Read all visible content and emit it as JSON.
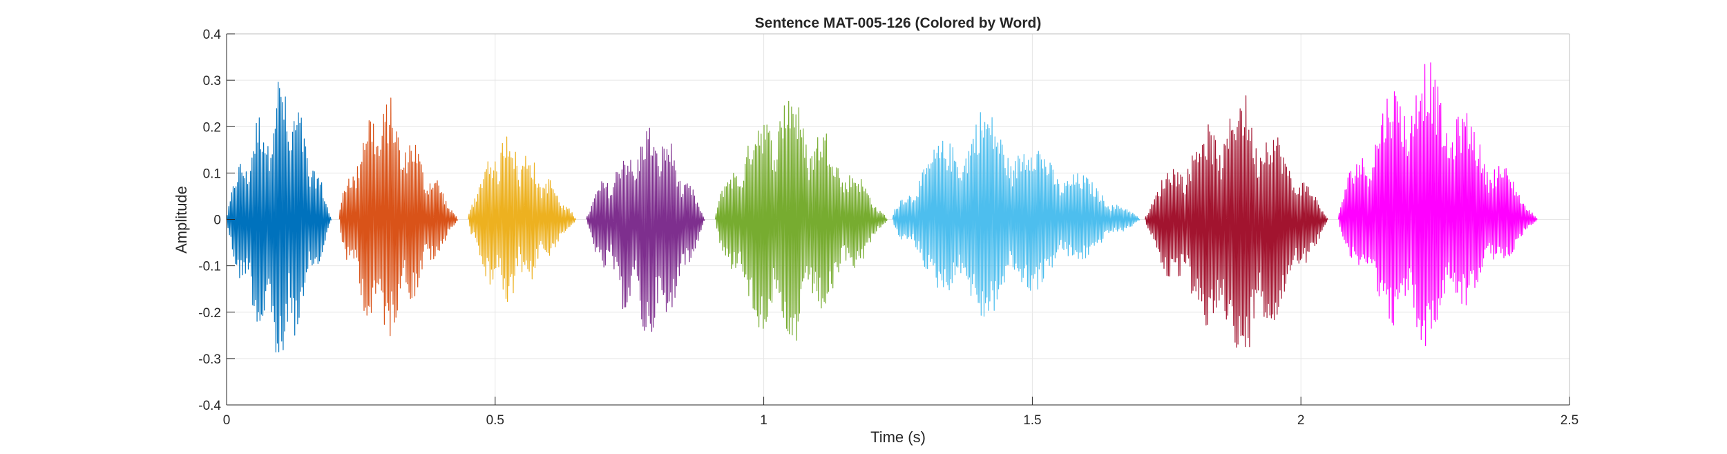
{
  "chart_data": {
    "type": "line",
    "title": "Sentence MAT-005-126 (Colored by Word)",
    "xlabel": "Time (s)",
    "ylabel": "Amplitude",
    "xlim": [
      0,
      2.5
    ],
    "ylim": [
      -0.4,
      0.4
    ],
    "xticks": [
      0,
      0.5,
      1,
      1.5,
      2,
      2.5
    ],
    "xtick_labels": [
      "0",
      "0.5",
      "1",
      "1.5",
      "2",
      "2.5"
    ],
    "yticks": [
      -0.4,
      -0.3,
      -0.2,
      -0.1,
      0,
      0.1,
      0.2,
      0.3,
      0.4
    ],
    "ytick_labels": [
      "-0.4",
      "-0.3",
      "-0.2",
      "-0.1",
      "0",
      "0.1",
      "0.2",
      "0.3",
      "0.4"
    ],
    "grid": true,
    "legend": "none",
    "series": [
      {
        "color": "#0072BD",
        "x_start": 0.0,
        "x_end": 0.195,
        "pos_peak": 0.34,
        "neg_peak": -0.36,
        "peak_at": 0.55
      },
      {
        "color": "#D95319",
        "x_start": 0.21,
        "x_end": 0.43,
        "pos_peak": 0.3,
        "neg_peak": -0.29,
        "peak_at": 0.35
      },
      {
        "color": "#EDB120",
        "x_start": 0.45,
        "x_end": 0.65,
        "pos_peak": 0.22,
        "neg_peak": -0.21,
        "peak_at": 0.35
      },
      {
        "color": "#7E2F8E",
        "x_start": 0.67,
        "x_end": 0.89,
        "pos_peak": 0.23,
        "neg_peak": -0.3,
        "peak_at": 0.6
      },
      {
        "color": "#77AC30",
        "x_start": 0.91,
        "x_end": 1.23,
        "pos_peak": 0.31,
        "neg_peak": -0.32,
        "peak_at": 0.4
      },
      {
        "color": "#4DBEEE",
        "x_start": 1.24,
        "x_end": 1.7,
        "pos_peak": 0.25,
        "neg_peak": -0.23,
        "peak_at": 0.35
      },
      {
        "color": "#A2142F",
        "x_start": 1.71,
        "x_end": 2.05,
        "pos_peak": 0.29,
        "neg_peak": -0.34,
        "peak_at": 0.55
      },
      {
        "color": "#FF00FF",
        "x_start": 2.07,
        "x_end": 2.44,
        "pos_peak": 0.38,
        "neg_peak": -0.3,
        "peak_at": 0.4
      }
    ]
  }
}
